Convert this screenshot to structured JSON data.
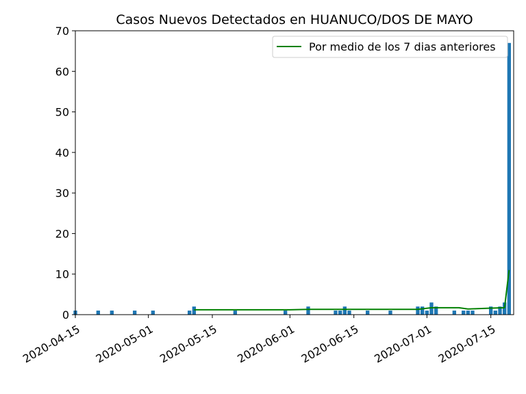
{
  "chart_data": {
    "type": "bar",
    "title": "Casos Nuevos Detectados en HUANUCO/DOS DE MAYO",
    "xlabel": "",
    "ylabel": "",
    "xlim": [
      "2020-04-15",
      "2020-07-20"
    ],
    "ylim": [
      0,
      70
    ],
    "yticks": [
      0,
      10,
      20,
      30,
      40,
      50,
      60,
      70
    ],
    "xticks": [
      "2020-04-15",
      "2020-05-01",
      "2020-05-15",
      "2020-06-01",
      "2020-06-15",
      "2020-07-01",
      "2020-07-15"
    ],
    "legend": {
      "position": "top-right",
      "entries": [
        "Por medio de los 7 dias anteriores"
      ]
    },
    "colors": {
      "bars": "#1f77b4",
      "line": "#008000"
    },
    "bars": [
      {
        "date": "2020-04-15",
        "value": 1
      },
      {
        "date": "2020-04-20",
        "value": 1
      },
      {
        "date": "2020-04-23",
        "value": 1
      },
      {
        "date": "2020-04-28",
        "value": 1
      },
      {
        "date": "2020-05-02",
        "value": 1
      },
      {
        "date": "2020-05-10",
        "value": 1
      },
      {
        "date": "2020-05-11",
        "value": 2
      },
      {
        "date": "2020-05-20",
        "value": 1
      },
      {
        "date": "2020-05-31",
        "value": 1
      },
      {
        "date": "2020-06-05",
        "value": 2
      },
      {
        "date": "2020-06-11",
        "value": 1
      },
      {
        "date": "2020-06-12",
        "value": 1
      },
      {
        "date": "2020-06-13",
        "value": 2
      },
      {
        "date": "2020-06-14",
        "value": 1
      },
      {
        "date": "2020-06-18",
        "value": 1
      },
      {
        "date": "2020-06-23",
        "value": 1
      },
      {
        "date": "2020-06-29",
        "value": 2
      },
      {
        "date": "2020-06-30",
        "value": 2
      },
      {
        "date": "2020-07-01",
        "value": 1
      },
      {
        "date": "2020-07-02",
        "value": 3
      },
      {
        "date": "2020-07-03",
        "value": 2
      },
      {
        "date": "2020-07-07",
        "value": 1
      },
      {
        "date": "2020-07-09",
        "value": 1
      },
      {
        "date": "2020-07-10",
        "value": 1
      },
      {
        "date": "2020-07-11",
        "value": 1
      },
      {
        "date": "2020-07-15",
        "value": 2
      },
      {
        "date": "2020-07-16",
        "value": 1
      },
      {
        "date": "2020-07-17",
        "value": 2
      },
      {
        "date": "2020-07-18",
        "value": 3
      },
      {
        "date": "2020-07-19",
        "value": 67
      }
    ],
    "series": [
      {
        "name": "Por medio de los 7 dias anteriores",
        "type": "line",
        "points": [
          {
            "date": "2020-05-11",
            "value": 1.2
          },
          {
            "date": "2020-06-01",
            "value": 1.2
          },
          {
            "date": "2020-06-05",
            "value": 1.3
          },
          {
            "date": "2020-06-29",
            "value": 1.3
          },
          {
            "date": "2020-07-02",
            "value": 1.7
          },
          {
            "date": "2020-07-08",
            "value": 1.7
          },
          {
            "date": "2020-07-10",
            "value": 1.4
          },
          {
            "date": "2020-07-15",
            "value": 1.6
          },
          {
            "date": "2020-07-18",
            "value": 1.7
          },
          {
            "date": "2020-07-19",
            "value": 11
          }
        ]
      }
    ]
  }
}
